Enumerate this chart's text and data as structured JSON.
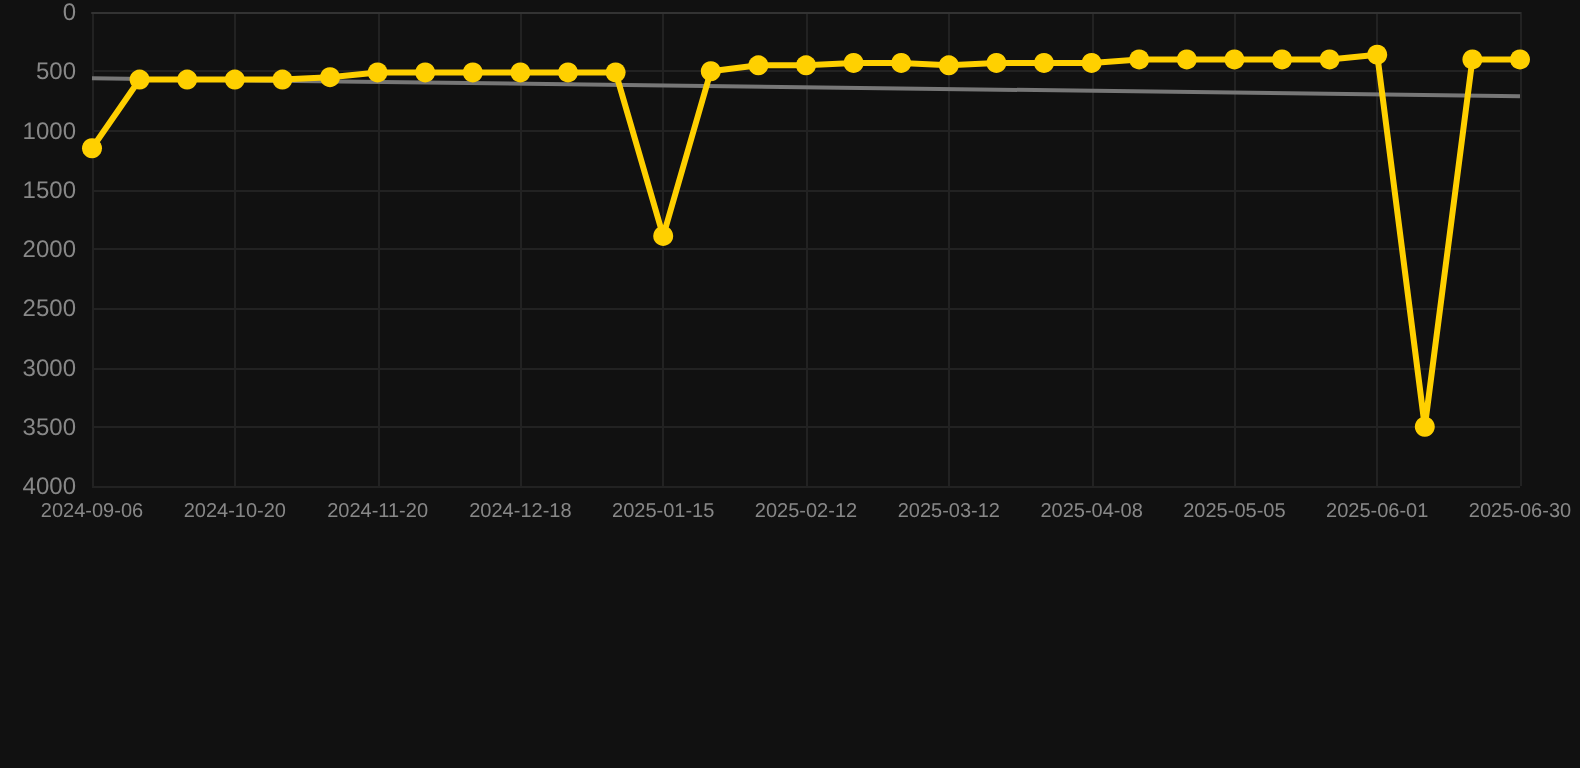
{
  "chart_data": {
    "type": "line",
    "categories": [
      "2024-09-06",
      null,
      null,
      "2024-10-20",
      null,
      null,
      "2024-11-20",
      null,
      null,
      "2024-12-18",
      null,
      null,
      "2025-01-15",
      null,
      null,
      "2025-02-12",
      null,
      null,
      "2025-03-12",
      null,
      null,
      "2025-04-08",
      null,
      null,
      "2025-05-05",
      null,
      null,
      "2025-06-01",
      null,
      null,
      "2025-06-30"
    ],
    "series": [
      {
        "color": "#ffd000",
        "marker": "circle",
        "values": [
          1150,
          570,
          570,
          570,
          570,
          550,
          510,
          510,
          510,
          510,
          510,
          510,
          1890,
          500,
          450,
          450,
          430,
          430,
          450,
          430,
          430,
          430,
          400,
          400,
          400,
          400,
          400,
          360,
          3500,
          400,
          400
        ]
      },
      {
        "color": "#777777",
        "marker": "none",
        "values": [
          560,
          null,
          null,
          null,
          null,
          null,
          null,
          null,
          null,
          null,
          null,
          null,
          null,
          null,
          null,
          null,
          null,
          null,
          null,
          null,
          null,
          null,
          null,
          null,
          null,
          null,
          null,
          null,
          null,
          null,
          710
        ]
      }
    ],
    "ylim": [
      4000,
      0
    ],
    "yticks": [
      0,
      500,
      1000,
      1500,
      2000,
      2500,
      3000,
      3500,
      4000
    ],
    "grid": true
  }
}
